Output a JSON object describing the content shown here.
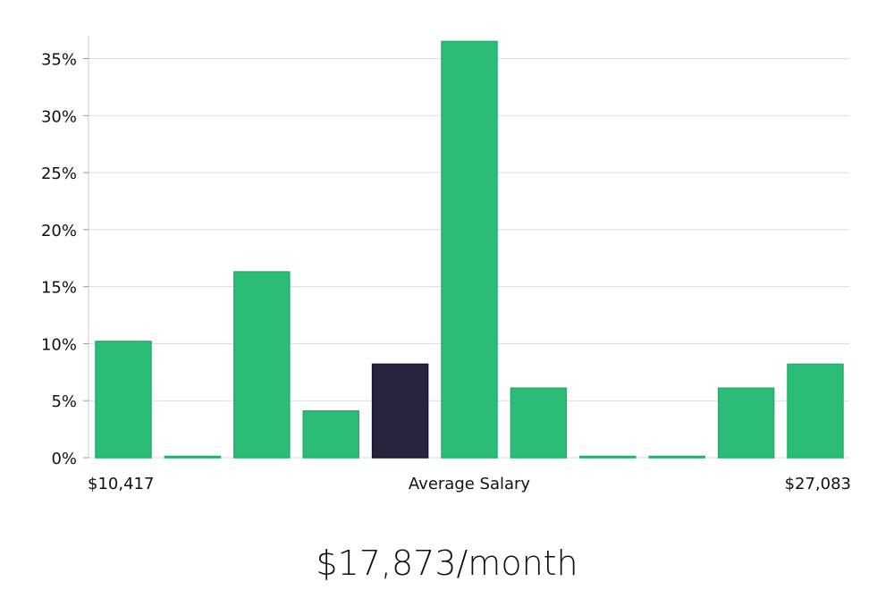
{
  "chart_data": {
    "type": "bar",
    "title": "",
    "xlabel": "Average Salary",
    "ylabel": "",
    "x_range_labels": {
      "min": "$10,417",
      "max": "$27,083"
    },
    "y_ticks": [
      "0%",
      "5%",
      "10%",
      "15%",
      "20%",
      "25%",
      "30%",
      "35%"
    ],
    "y_tick_values": [
      0,
      5,
      10,
      15,
      20,
      25,
      30,
      35
    ],
    "ylim": [
      0,
      37
    ],
    "grid": true,
    "values": [
      10.2,
      0,
      16.3,
      4.1,
      8.2,
      36.5,
      6.1,
      0,
      0,
      6.1,
      8.2
    ],
    "highlight_index": 4,
    "colors": {
      "bar": "#2bbd77",
      "bar_edge": "#1fb06a",
      "highlight": "#28243f",
      "highlight_edge": "#17142b",
      "grid": "#dcdcdc",
      "axis": "#cccccc"
    }
  },
  "summary": {
    "salary_text": "$17,873/month"
  }
}
